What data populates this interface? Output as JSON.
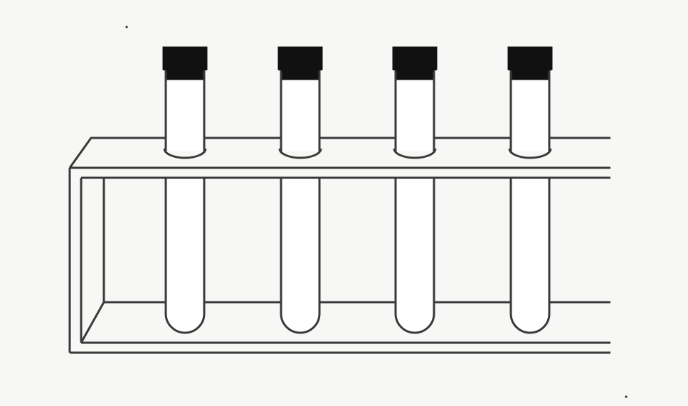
{
  "figure": {
    "background_color": "#f7f7f5",
    "line_color": "#3a3a3a",
    "stopper_color": "#111111",
    "tube_fill": "#ffffff",
    "rack_fill": "#f7f7f5"
  },
  "rack": {
    "tube_count": 4
  },
  "tubes": [
    {
      "id": "tube-1",
      "stoppered": true
    },
    {
      "id": "tube-2",
      "stoppered": true
    },
    {
      "id": "tube-3",
      "stoppered": true
    },
    {
      "id": "tube-4",
      "stoppered": true
    }
  ]
}
